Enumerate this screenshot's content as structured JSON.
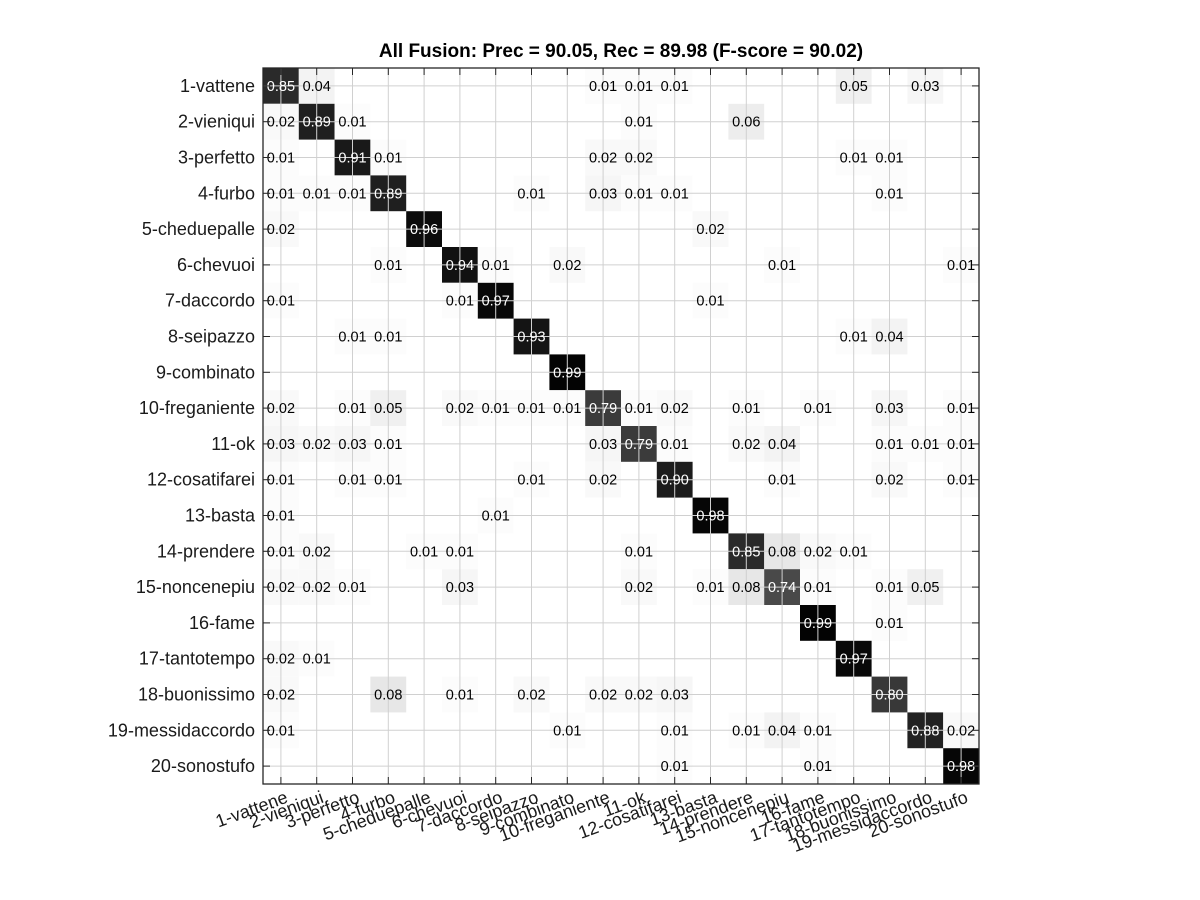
{
  "chart_data": {
    "type": "heatmap",
    "title": "All Fusion: Prec = 90.05, Rec = 89.98 (F-score = 90.02)",
    "row_labels": [
      "1-vattene",
      "2-vieniqui",
      "3-perfetto",
      "4-furbo",
      "5-cheduepalle",
      "6-chevuoi",
      "7-daccordo",
      "8-seipazzo",
      "9-combinato",
      "10-freganiente",
      "11-ok",
      "12-cosatifarei",
      "13-basta",
      "14-prendere",
      "15-noncenepiu",
      "16-fame",
      "17-tantotempo",
      "18-buonissimo",
      "19-messidaccordo",
      "20-sonostufo"
    ],
    "col_labels": [
      "1-vattene",
      "2-vieniqui",
      "3-perfetto",
      "4-furbo",
      "5-cheduepalle",
      "6-chevuoi",
      "7-daccordo",
      "8-seipazzo",
      "9-combinato",
      "10-freganiente",
      "11-ok",
      "12-cosatifarei",
      "13-basta",
      "14-prendere",
      "15-noncenepiu",
      "16-fame",
      "17-tantotempo",
      "18-buonissimo",
      "19-messidaccordo",
      "20-sonostufo"
    ],
    "values": [
      [
        0.85,
        0.04,
        0,
        0,
        0,
        0,
        0,
        0,
        0,
        0.01,
        0.01,
        0.01,
        0,
        0,
        0,
        0,
        0.05,
        0,
        0.03,
        0
      ],
      [
        0.02,
        0.89,
        0.01,
        0,
        0,
        0,
        0,
        0,
        0,
        0,
        0.01,
        0,
        0,
        0.06,
        0,
        0,
        0,
        0,
        0,
        0
      ],
      [
        0.01,
        0,
        0.91,
        0.01,
        0,
        0,
        0,
        0,
        0,
        0.02,
        0.02,
        0,
        0,
        0,
        0,
        0,
        0.01,
        0.01,
        0,
        0
      ],
      [
        0.01,
        0.01,
        0.01,
        0.89,
        0,
        0,
        0,
        0.01,
        0,
        0.03,
        0.01,
        0.01,
        0,
        0,
        0,
        0,
        0,
        0.01,
        0,
        0
      ],
      [
        0.02,
        0,
        0,
        0,
        0.96,
        0,
        0,
        0,
        0,
        0,
        0,
        0,
        0.02,
        0,
        0,
        0,
        0,
        0,
        0,
        0
      ],
      [
        0,
        0,
        0,
        0.01,
        0,
        0.94,
        0.01,
        0,
        0.02,
        0,
        0,
        0,
        0,
        0,
        0.01,
        0,
        0,
        0,
        0,
        0.01
      ],
      [
        0.01,
        0,
        0,
        0,
        0,
        0.01,
        0.97,
        0,
        0,
        0,
        0,
        0,
        0.01,
        0,
        0,
        0,
        0,
        0,
        0,
        0
      ],
      [
        0,
        0,
        0.01,
        0.01,
        0,
        0,
        0,
        0.93,
        0,
        0,
        0,
        0,
        0,
        0,
        0,
        0,
        0.01,
        0.04,
        0,
        0
      ],
      [
        0,
        0,
        0,
        0,
        0,
        0,
        0,
        0,
        0.99,
        0,
        0,
        0,
        0,
        0,
        0,
        0,
        0,
        0,
        0,
        0
      ],
      [
        0.02,
        0,
        0.01,
        0.05,
        0,
        0.02,
        0.01,
        0.01,
        0.01,
        0.79,
        0.01,
        0.02,
        0,
        0.01,
        0,
        0.01,
        0,
        0.03,
        0,
        0.01
      ],
      [
        0.03,
        0.02,
        0.03,
        0.01,
        0,
        0,
        0,
        0,
        0,
        0.03,
        0.79,
        0.01,
        0,
        0.02,
        0.04,
        0,
        0,
        0.01,
        0.01,
        0.01
      ],
      [
        0.01,
        0,
        0.01,
        0.01,
        0,
        0,
        0,
        0.01,
        0,
        0.02,
        0,
        0.9,
        0,
        0,
        0.01,
        0,
        0,
        0.02,
        0,
        0.01
      ],
      [
        0.01,
        0,
        0,
        0,
        0,
        0,
        0.01,
        0,
        0,
        0,
        0,
        0,
        0.98,
        0,
        0,
        0,
        0,
        0,
        0,
        0
      ],
      [
        0.01,
        0.02,
        0,
        0,
        0.01,
        0.01,
        0,
        0,
        0,
        0,
        0.01,
        0,
        0,
        0.85,
        0.08,
        0.02,
        0.01,
        0,
        0,
        0
      ],
      [
        0.02,
        0.02,
        0.01,
        0,
        0,
        0.03,
        0,
        0,
        0,
        0,
        0.02,
        0,
        0.01,
        0.08,
        0.74,
        0.01,
        0,
        0.01,
        0.05,
        0
      ],
      [
        0,
        0,
        0,
        0,
        0,
        0,
        0,
        0,
        0,
        0,
        0,
        0,
        0,
        0,
        0,
        0.99,
        0,
        0.01,
        0,
        0
      ],
      [
        0.02,
        0.01,
        0,
        0,
        0,
        0,
        0,
        0,
        0,
        0,
        0,
        0,
        0,
        0,
        0,
        0,
        0.97,
        0,
        0,
        0
      ],
      [
        0.02,
        0,
        0,
        0.08,
        0,
        0.01,
        0,
        0.02,
        0,
        0.02,
        0.02,
        0.03,
        0,
        0,
        0,
        0,
        0,
        0.8,
        0,
        0
      ],
      [
        0.01,
        0,
        0,
        0,
        0,
        0,
        0,
        0,
        0.01,
        0,
        0,
        0.01,
        0,
        0.01,
        0.04,
        0.01,
        0,
        0,
        0.88,
        0.02
      ],
      [
        0,
        0,
        0,
        0,
        0,
        0,
        0,
        0,
        0,
        0,
        0,
        0.01,
        0,
        0,
        0,
        0.01,
        0,
        0,
        0,
        0.98
      ]
    ],
    "value_format": "0.00",
    "colormap": "gray-inverted",
    "grid": true
  }
}
